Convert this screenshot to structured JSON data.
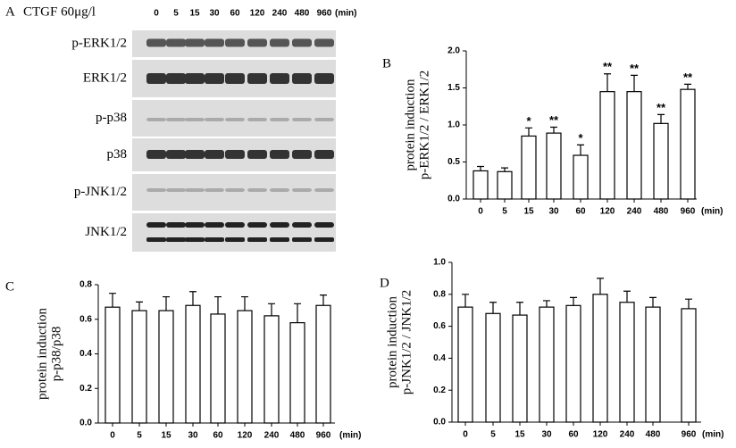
{
  "figure": {
    "panel": "A",
    "treatment": "CTGF 60μg/l",
    "lanes": [
      "0",
      "5",
      "15",
      "30",
      "60",
      "120",
      "240",
      "480",
      "960"
    ],
    "unit": "(min)",
    "rows": [
      "p-ERK1/2",
      "ERK1/2",
      "p-p38",
      "p38",
      "p-JNK1/2",
      "JNK1/2"
    ]
  },
  "chart_data": [
    {
      "type": "bar",
      "panel": "B",
      "ylabel": [
        "protein induction",
        "p-ERK1/2 / ERK1/2"
      ],
      "xunit": "(min)",
      "categories": [
        "0",
        "5",
        "15",
        "30",
        "60",
        "120",
        "240",
        "480",
        "960"
      ],
      "values": [
        0.38,
        0.37,
        0.85,
        0.89,
        0.59,
        1.45,
        1.45,
        1.02,
        1.48
      ],
      "errors": [
        0.06,
        0.05,
        0.11,
        0.08,
        0.14,
        0.24,
        0.22,
        0.12,
        0.07
      ],
      "annotations": [
        null,
        null,
        "*",
        "**",
        "*",
        "**",
        "**",
        "**",
        "**"
      ],
      "color": "#ffffff",
      "ylim": [
        0,
        2.0
      ],
      "yticks": [
        {
          "value": 0,
          "label": "0.0"
        },
        0.5,
        {
          "value": 1,
          "label": "1.0"
        },
        1.5,
        {
          "value": 2,
          "label": "2.0"
        }
      ]
    },
    {
      "type": "bar",
      "panel": "C",
      "ylabel": [
        "protein induction",
        "p-p38/p38"
      ],
      "xunit": "(min)",
      "categories": [
        "0",
        "5",
        "15",
        "30",
        "60",
        "120",
        "240",
        "480",
        "960"
      ],
      "values": [
        0.67,
        0.65,
        0.65,
        0.68,
        0.63,
        0.65,
        0.62,
        0.58,
        0.68
      ],
      "errors": [
        0.08,
        0.05,
        0.08,
        0.08,
        0.1,
        0.08,
        0.07,
        0.11,
        0.06
      ],
      "color": "#ffffff",
      "ylim": [
        0,
        0.8
      ],
      "yticks": [
        {
          "value": 0,
          "label": "0.0"
        },
        0.2,
        0.4,
        0.6,
        0.8
      ]
    },
    {
      "type": "bar",
      "panel": "D",
      "ylabel": [
        "protein induction",
        "p-JNK1/2 / JNK1/2"
      ],
      "xunit": "(min)",
      "categories": [
        "0",
        "5",
        "15",
        "30",
        "60",
        "120",
        "240",
        "480",
        "960"
      ],
      "values": [
        0.72,
        0.68,
        0.67,
        0.72,
        0.73,
        0.8,
        0.75,
        0.72,
        0.71
      ],
      "errors": [
        0.08,
        0.07,
        0.08,
        0.04,
        0.05,
        0.1,
        0.07,
        0.06,
        0.06
      ],
      "color": "#ffffff",
      "ylim": [
        0,
        1.0
      ],
      "yticks": [
        {
          "value": 0,
          "label": "0.0"
        },
        0.2,
        0.4,
        0.6,
        0.8,
        {
          "value": 1,
          "label": "1.0"
        }
      ]
    }
  ]
}
